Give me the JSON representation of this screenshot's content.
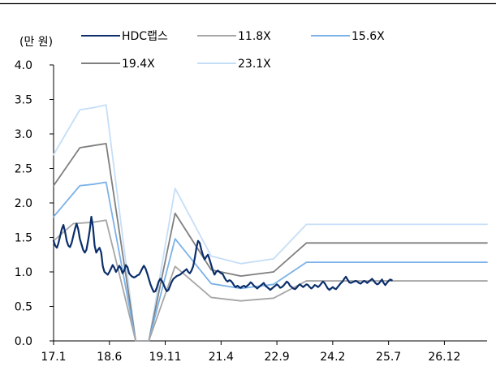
{
  "chart_data": {
    "type": "line",
    "unit_label": "(만 원)",
    "x_tick_labels": [
      "17.1",
      "18.6",
      "19.11",
      "21.4",
      "22.9",
      "24.2",
      "25.7",
      "26.12"
    ],
    "x_tick_positions": [
      0,
      17,
      34,
      51,
      68,
      85,
      102,
      119
    ],
    "x_range": [
      0,
      132
    ],
    "y_range": [
      0,
      4.0
    ],
    "y_ticks": [
      "0.0",
      "0.5",
      "1.0",
      "1.5",
      "2.0",
      "2.5",
      "3.0",
      "3.5",
      "4.0"
    ],
    "grid": false,
    "series": [
      {
        "name": "HDC랩스",
        "color": "#0b2e6b",
        "width": 2.2,
        "points": [
          [
            0,
            1.45
          ],
          [
            0.5,
            1.38
          ],
          [
            1,
            1.35
          ],
          [
            1.5,
            1.42
          ],
          [
            2,
            1.52
          ],
          [
            2.5,
            1.62
          ],
          [
            3,
            1.68
          ],
          [
            3.5,
            1.58
          ],
          [
            4,
            1.45
          ],
          [
            4.5,
            1.38
          ],
          [
            5,
            1.36
          ],
          [
            5.5,
            1.42
          ],
          [
            6,
            1.52
          ],
          [
            6.5,
            1.62
          ],
          [
            7,
            1.7
          ],
          [
            7.5,
            1.62
          ],
          [
            8,
            1.48
          ],
          [
            8.5,
            1.4
          ],
          [
            9,
            1.32
          ],
          [
            9.5,
            1.28
          ],
          [
            10,
            1.32
          ],
          [
            10.5,
            1.45
          ],
          [
            11,
            1.6
          ],
          [
            11.5,
            1.8
          ],
          [
            12,
            1.65
          ],
          [
            12.5,
            1.38
          ],
          [
            13,
            1.28
          ],
          [
            13.5,
            1.32
          ],
          [
            14,
            1.35
          ],
          [
            14.5,
            1.28
          ],
          [
            15,
            1.08
          ],
          [
            15.5,
            1.0
          ],
          [
            16,
            0.98
          ],
          [
            16.5,
            0.96
          ],
          [
            17,
            1.0
          ],
          [
            17.5,
            1.05
          ],
          [
            18,
            1.1
          ],
          [
            18.5,
            1.06
          ],
          [
            19,
            1.0
          ],
          [
            19.5,
            1.04
          ],
          [
            20,
            1.09
          ],
          [
            20.5,
            1.05
          ],
          [
            21,
            0.98
          ],
          [
            21.5,
            1.02
          ],
          [
            22,
            1.1
          ],
          [
            22.5,
            1.07
          ],
          [
            23,
            0.98
          ],
          [
            23.5,
            0.95
          ],
          [
            24,
            0.93
          ],
          [
            24.5,
            0.92
          ],
          [
            25,
            0.93
          ],
          [
            25.5,
            0.95
          ],
          [
            26,
            0.96
          ],
          [
            26.5,
            1.0
          ],
          [
            27,
            1.05
          ],
          [
            27.5,
            1.09
          ],
          [
            28,
            1.05
          ],
          [
            28.5,
            0.98
          ],
          [
            29,
            0.9
          ],
          [
            29.5,
            0.82
          ],
          [
            30,
            0.76
          ],
          [
            30.5,
            0.71
          ],
          [
            31,
            0.72
          ],
          [
            31.5,
            0.78
          ],
          [
            32,
            0.86
          ],
          [
            32.5,
            0.9
          ],
          [
            33,
            0.87
          ],
          [
            33.5,
            0.82
          ],
          [
            34,
            0.76
          ],
          [
            34.5,
            0.72
          ],
          [
            35,
            0.74
          ],
          [
            35.5,
            0.8
          ],
          [
            36,
            0.86
          ],
          [
            36.5,
            0.9
          ],
          [
            37,
            0.92
          ],
          [
            37.5,
            0.94
          ],
          [
            38,
            0.95
          ],
          [
            38.5,
            0.96
          ],
          [
            39,
            0.98
          ],
          [
            39.5,
            1.0
          ],
          [
            40,
            1.02
          ],
          [
            40.5,
            1.04
          ],
          [
            41,
            1.0
          ],
          [
            41.5,
            0.98
          ],
          [
            42,
            1.02
          ],
          [
            42.5,
            1.08
          ],
          [
            43,
            1.2
          ],
          [
            43.5,
            1.35
          ],
          [
            44,
            1.45
          ],
          [
            44.5,
            1.42
          ],
          [
            45,
            1.32
          ],
          [
            45.5,
            1.24
          ],
          [
            46,
            1.18
          ],
          [
            46.5,
            1.22
          ],
          [
            47,
            1.25
          ],
          [
            47.5,
            1.18
          ],
          [
            48,
            1.1
          ],
          [
            48.5,
            1.02
          ],
          [
            49,
            0.96
          ],
          [
            49.5,
            1.0
          ],
          [
            50,
            1.02
          ],
          [
            50.5,
            1.0
          ],
          [
            51,
            0.98
          ],
          [
            51.5,
            0.97
          ],
          [
            52,
            0.92
          ],
          [
            52.5,
            0.88
          ],
          [
            53,
            0.86
          ],
          [
            53.5,
            0.88
          ],
          [
            54,
            0.87
          ],
          [
            54.5,
            0.84
          ],
          [
            55,
            0.8
          ],
          [
            55.5,
            0.78
          ],
          [
            56,
            0.8
          ],
          [
            56.5,
            0.78
          ],
          [
            57,
            0.77
          ],
          [
            57.5,
            0.79
          ],
          [
            58,
            0.8
          ],
          [
            58.5,
            0.78
          ],
          [
            59,
            0.8
          ],
          [
            59.5,
            0.82
          ],
          [
            60,
            0.85
          ],
          [
            60.5,
            0.83
          ],
          [
            61,
            0.8
          ],
          [
            61.5,
            0.78
          ],
          [
            62,
            0.76
          ],
          [
            62.5,
            0.78
          ],
          [
            63,
            0.8
          ],
          [
            63.5,
            0.82
          ],
          [
            64,
            0.84
          ],
          [
            64.5,
            0.8
          ],
          [
            65,
            0.78
          ],
          [
            65.5,
            0.76
          ],
          [
            66,
            0.74
          ],
          [
            66.5,
            0.76
          ],
          [
            67,
            0.78
          ],
          [
            67.5,
            0.8
          ],
          [
            68,
            0.82
          ],
          [
            68.5,
            0.8
          ],
          [
            69,
            0.77
          ],
          [
            69.5,
            0.78
          ],
          [
            70,
            0.8
          ],
          [
            70.5,
            0.83
          ],
          [
            71,
            0.86
          ],
          [
            71.5,
            0.84
          ],
          [
            72,
            0.8
          ],
          [
            72.5,
            0.78
          ],
          [
            73,
            0.76
          ],
          [
            73.5,
            0.75
          ],
          [
            74,
            0.77
          ],
          [
            74.5,
            0.8
          ],
          [
            75,
            0.82
          ],
          [
            75.5,
            0.8
          ],
          [
            76,
            0.78
          ],
          [
            76.5,
            0.8
          ],
          [
            77,
            0.82
          ],
          [
            77.5,
            0.81
          ],
          [
            78,
            0.78
          ],
          [
            78.5,
            0.76
          ],
          [
            79,
            0.78
          ],
          [
            79.5,
            0.81
          ],
          [
            80,
            0.8
          ],
          [
            80.5,
            0.78
          ],
          [
            81,
            0.8
          ],
          [
            81.5,
            0.83
          ],
          [
            82,
            0.86
          ],
          [
            82.5,
            0.84
          ],
          [
            83,
            0.8
          ],
          [
            83.5,
            0.76
          ],
          [
            84,
            0.74
          ],
          [
            84.5,
            0.76
          ],
          [
            85,
            0.78
          ],
          [
            85.5,
            0.76
          ],
          [
            86,
            0.75
          ],
          [
            86.5,
            0.78
          ],
          [
            87,
            0.81
          ],
          [
            87.5,
            0.84
          ],
          [
            88,
            0.86
          ],
          [
            88.5,
            0.9
          ],
          [
            89,
            0.93
          ],
          [
            89.5,
            0.89
          ],
          [
            90,
            0.85
          ],
          [
            90.5,
            0.84
          ],
          [
            91,
            0.85
          ],
          [
            91.5,
            0.86
          ],
          [
            92,
            0.87
          ],
          [
            92.5,
            0.86
          ],
          [
            93,
            0.84
          ],
          [
            93.5,
            0.83
          ],
          [
            94,
            0.85
          ],
          [
            94.5,
            0.87
          ],
          [
            95,
            0.86
          ],
          [
            95.5,
            0.84
          ],
          [
            96,
            0.86
          ],
          [
            96.5,
            0.88
          ],
          [
            97,
            0.9
          ],
          [
            97.5,
            0.87
          ],
          [
            98,
            0.84
          ],
          [
            98.5,
            0.82
          ],
          [
            99,
            0.83
          ],
          [
            99.5,
            0.86
          ],
          [
            100,
            0.89
          ],
          [
            100.5,
            0.84
          ],
          [
            101,
            0.81
          ],
          [
            101.5,
            0.84
          ],
          [
            102,
            0.87
          ],
          [
            102.5,
            0.89
          ],
          [
            103,
            0.88
          ]
        ]
      },
      {
        "name": "11.8X",
        "color": "#a6a6a6",
        "width": 1.8,
        "points": [
          [
            0,
            1.45
          ],
          [
            6,
            1.7
          ],
          [
            12,
            1.72
          ],
          [
            16,
            1.75
          ],
          [
            25,
            0.0
          ],
          [
            29,
            0.0
          ],
          [
            37,
            1.08
          ],
          [
            48,
            0.63
          ],
          [
            57,
            0.58
          ],
          [
            67,
            0.62
          ],
          [
            77,
            0.87
          ],
          [
            132,
            0.87
          ]
        ]
      },
      {
        "name": "15.6X",
        "color": "#7cb2e8",
        "width": 1.8,
        "points": [
          [
            0,
            1.8
          ],
          [
            8,
            2.25
          ],
          [
            12,
            2.27
          ],
          [
            16,
            2.3
          ],
          [
            25,
            0.0
          ],
          [
            29,
            0.0
          ],
          [
            37,
            1.48
          ],
          [
            48,
            0.83
          ],
          [
            57,
            0.76
          ],
          [
            67,
            0.82
          ],
          [
            77,
            1.14
          ],
          [
            132,
            1.14
          ]
        ]
      },
      {
        "name": "19.4X",
        "color": "#7f7f7f",
        "width": 1.8,
        "points": [
          [
            0,
            2.25
          ],
          [
            8,
            2.8
          ],
          [
            12,
            2.83
          ],
          [
            16,
            2.86
          ],
          [
            25,
            0.0
          ],
          [
            29,
            0.0
          ],
          [
            37,
            1.85
          ],
          [
            48,
            1.03
          ],
          [
            57,
            0.94
          ],
          [
            67,
            1.0
          ],
          [
            77,
            1.42
          ],
          [
            132,
            1.42
          ]
        ]
      },
      {
        "name": "23.1X",
        "color": "#c5def7",
        "width": 1.8,
        "points": [
          [
            0,
            2.7
          ],
          [
            8,
            3.35
          ],
          [
            12,
            3.38
          ],
          [
            16,
            3.42
          ],
          [
            25,
            0.0
          ],
          [
            29,
            0.0
          ],
          [
            37,
            2.21
          ],
          [
            48,
            1.23
          ],
          [
            57,
            1.12
          ],
          [
            67,
            1.19
          ],
          [
            77,
            1.69
          ],
          [
            132,
            1.69
          ]
        ]
      }
    ],
    "legend_rows": [
      [
        "HDC랩스",
        "11.8X",
        "15.6X"
      ],
      [
        "19.4X",
        "23.1X"
      ]
    ]
  }
}
